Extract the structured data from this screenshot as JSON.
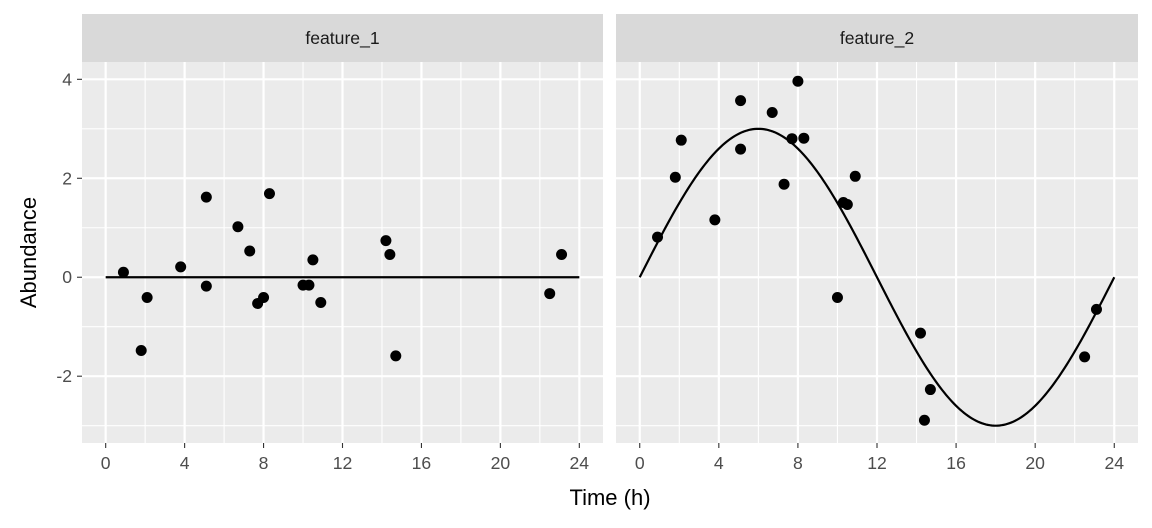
{
  "chart_data": {
    "type": "scatter",
    "xlabel": "Time (h)",
    "ylabel": "Abundance",
    "xlim": [
      -1.2,
      25.2
    ],
    "ylim": [
      -3.35,
      4.35
    ],
    "x_ticks": [
      0,
      4,
      8,
      12,
      16,
      20,
      24
    ],
    "y_ticks": [
      -2,
      0,
      2,
      4
    ],
    "y_tick_labels": [
      "-2",
      "0",
      "2",
      "4"
    ],
    "grid": true,
    "colors": {
      "points": "#000000",
      "panel": "#ebebeb",
      "strip": "#d9d9d9"
    },
    "facets": [
      {
        "name": "feature_1",
        "points": [
          {
            "x": 0.9,
            "y": 0.1
          },
          {
            "x": 1.8,
            "y": -1.48
          },
          {
            "x": 2.1,
            "y": -0.41
          },
          {
            "x": 3.8,
            "y": 0.21
          },
          {
            "x": 5.1,
            "y": 1.62
          },
          {
            "x": 5.1,
            "y": -0.18
          },
          {
            "x": 6.7,
            "y": 1.02
          },
          {
            "x": 7.3,
            "y": 0.53
          },
          {
            "x": 7.7,
            "y": -0.53
          },
          {
            "x": 8.0,
            "y": -0.41
          },
          {
            "x": 8.3,
            "y": 1.69
          },
          {
            "x": 10.0,
            "y": -0.16
          },
          {
            "x": 10.3,
            "y": -0.16
          },
          {
            "x": 10.5,
            "y": 0.35
          },
          {
            "x": 10.9,
            "y": -0.51
          },
          {
            "x": 14.2,
            "y": 0.74
          },
          {
            "x": 14.4,
            "y": 0.46
          },
          {
            "x": 14.7,
            "y": -1.59
          },
          {
            "x": 22.5,
            "y": -0.33
          },
          {
            "x": 23.1,
            "y": 0.46
          }
        ],
        "fit": {
          "amplitude": 0,
          "period": 24,
          "phase": 0
        }
      },
      {
        "name": "feature_2",
        "points": [
          {
            "x": 0.9,
            "y": 0.81
          },
          {
            "x": 1.8,
            "y": 2.02
          },
          {
            "x": 2.1,
            "y": 2.77
          },
          {
            "x": 3.8,
            "y": 1.16
          },
          {
            "x": 5.1,
            "y": 3.57
          },
          {
            "x": 5.1,
            "y": 2.59
          },
          {
            "x": 6.7,
            "y": 3.33
          },
          {
            "x": 7.3,
            "y": 1.88
          },
          {
            "x": 7.7,
            "y": 2.8
          },
          {
            "x": 8.0,
            "y": 3.96
          },
          {
            "x": 8.3,
            "y": 2.81
          },
          {
            "x": 10.0,
            "y": -0.41
          },
          {
            "x": 10.3,
            "y": 1.51
          },
          {
            "x": 10.5,
            "y": 1.47
          },
          {
            "x": 10.9,
            "y": 2.04
          },
          {
            "x": 14.2,
            "y": -1.13
          },
          {
            "x": 14.4,
            "y": -2.89
          },
          {
            "x": 14.7,
            "y": -2.27
          },
          {
            "x": 22.5,
            "y": -1.61
          },
          {
            "x": 23.1,
            "y": -0.65
          }
        ],
        "fit": {
          "amplitude": 3,
          "period": 24,
          "phase": 0
        }
      }
    ]
  }
}
